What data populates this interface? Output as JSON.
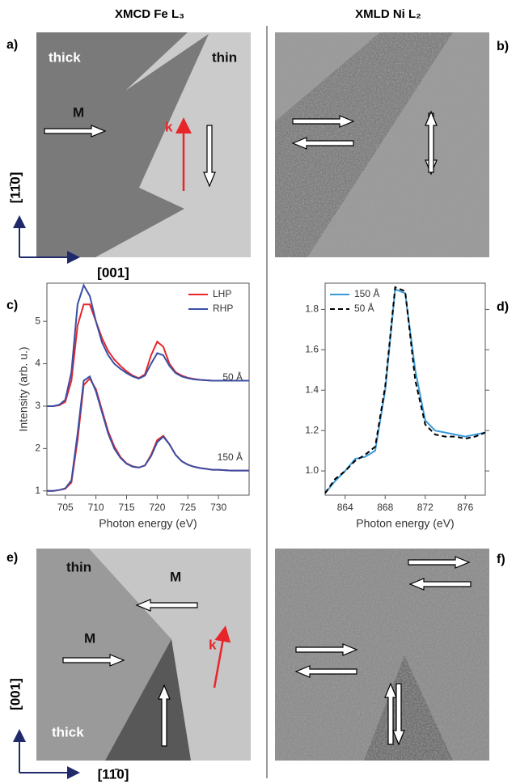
{
  "headers": {
    "left": "XMCD Fe L₃",
    "right": "XMLD Ni L₂"
  },
  "panels": {
    "a": "a)",
    "b": "b)",
    "c": "c)",
    "d": "d)",
    "e": "e)",
    "f": "f)"
  },
  "image_a": {
    "thick": "thick",
    "thin": "thin",
    "m": "M",
    "k": "k",
    "axis_vertical": "[11̄0]",
    "axis_horizontal": "[001]"
  },
  "image_e": {
    "thin": "thin",
    "thick": "thick",
    "m_top": "M",
    "m_left": "M",
    "k": "k",
    "axis_vertical": "[001]",
    "axis_horizontal": "[11̄0]"
  },
  "chart_data": [
    {
      "type": "line",
      "xlabel": "Photon energy (eV)",
      "ylabel": "Intensity (arb. u.)",
      "x": [
        702,
        703,
        704,
        705,
        706,
        707,
        708,
        709,
        710,
        711,
        712,
        713,
        714,
        715,
        716,
        717,
        718,
        719,
        720,
        721,
        722,
        723,
        724,
        725,
        726,
        727,
        728,
        729,
        730,
        731,
        732,
        733,
        734,
        735
      ],
      "xlim": [
        702,
        735
      ],
      "xticks": [
        705,
        710,
        715,
        720,
        725,
        730
      ],
      "ylim": [
        0.9,
        5.9
      ],
      "yticks": [
        1,
        2,
        3,
        4,
        5
      ],
      "legend": "upper right",
      "annotations": [
        "50 Å",
        "150 Å"
      ],
      "series": [
        {
          "name": "LHP",
          "color": "#e8262a",
          "values": [
            3.0,
            3.0,
            3.02,
            3.1,
            3.6,
            4.9,
            5.4,
            5.4,
            5.0,
            4.6,
            4.3,
            4.1,
            3.95,
            3.82,
            3.72,
            3.66,
            3.75,
            4.2,
            4.52,
            4.4,
            4.0,
            3.8,
            3.72,
            3.67,
            3.64,
            3.62,
            3.61,
            3.6,
            3.6,
            3.6,
            3.6,
            3.6,
            3.6,
            3.6
          ]
        },
        {
          "name": "RHP",
          "color": "#3a4fa3",
          "values": [
            3.0,
            3.0,
            3.03,
            3.15,
            3.8,
            5.4,
            5.85,
            5.6,
            5.0,
            4.5,
            4.2,
            4.0,
            3.88,
            3.78,
            3.7,
            3.65,
            3.72,
            4.0,
            4.25,
            4.2,
            3.95,
            3.78,
            3.7,
            3.66,
            3.63,
            3.62,
            3.61,
            3.6,
            3.6,
            3.6,
            3.6,
            3.6,
            3.6,
            3.6
          ]
        },
        {
          "color": "#e8262a",
          "values": [
            1.0,
            1.0,
            1.02,
            1.05,
            1.2,
            2.2,
            3.5,
            3.65,
            3.4,
            2.9,
            2.4,
            2.05,
            1.8,
            1.65,
            1.58,
            1.55,
            1.6,
            1.85,
            2.2,
            2.3,
            2.1,
            1.85,
            1.7,
            1.62,
            1.57,
            1.54,
            1.52,
            1.5,
            1.5,
            1.49,
            1.48,
            1.48,
            1.48,
            1.48
          ]
        },
        {
          "color": "#3a4fa3",
          "values": [
            1.0,
            1.0,
            1.02,
            1.06,
            1.25,
            2.35,
            3.6,
            3.7,
            3.35,
            2.85,
            2.35,
            2.0,
            1.78,
            1.64,
            1.57,
            1.55,
            1.6,
            1.82,
            2.15,
            2.28,
            2.1,
            1.85,
            1.7,
            1.62,
            1.57,
            1.54,
            1.52,
            1.5,
            1.5,
            1.49,
            1.48,
            1.48,
            1.48,
            1.48
          ]
        }
      ]
    },
    {
      "type": "line",
      "xlabel": "Photon energy (eV)",
      "x": [
        862,
        863,
        864,
        865,
        866,
        867,
        868,
        869,
        870,
        871,
        872,
        873,
        874,
        875,
        876,
        877,
        878
      ],
      "xlim": [
        862,
        878
      ],
      "xticks": [
        864,
        868,
        872,
        876
      ],
      "ylim": [
        0.88,
        1.93
      ],
      "yticks": [
        {
          "value": 1,
          "label": "1.0"
        },
        1.2,
        1.4,
        1.6,
        1.8
      ],
      "legend": "upper left",
      "series": [
        {
          "name": "150 Å",
          "color": "#3a9ad9",
          "values": [
            0.89,
            0.95,
            1.0,
            1.06,
            1.07,
            1.1,
            1.4,
            1.9,
            1.88,
            1.5,
            1.25,
            1.2,
            1.19,
            1.18,
            1.17,
            1.18,
            1.19
          ]
        },
        {
          "name": "50 Å",
          "color": "#000000",
          "dash": true,
          "values": [
            0.89,
            0.96,
            1.0,
            1.05,
            1.08,
            1.12,
            1.42,
            1.91,
            1.89,
            1.45,
            1.23,
            1.18,
            1.17,
            1.17,
            1.16,
            1.17,
            1.19
          ]
        }
      ]
    }
  ]
}
